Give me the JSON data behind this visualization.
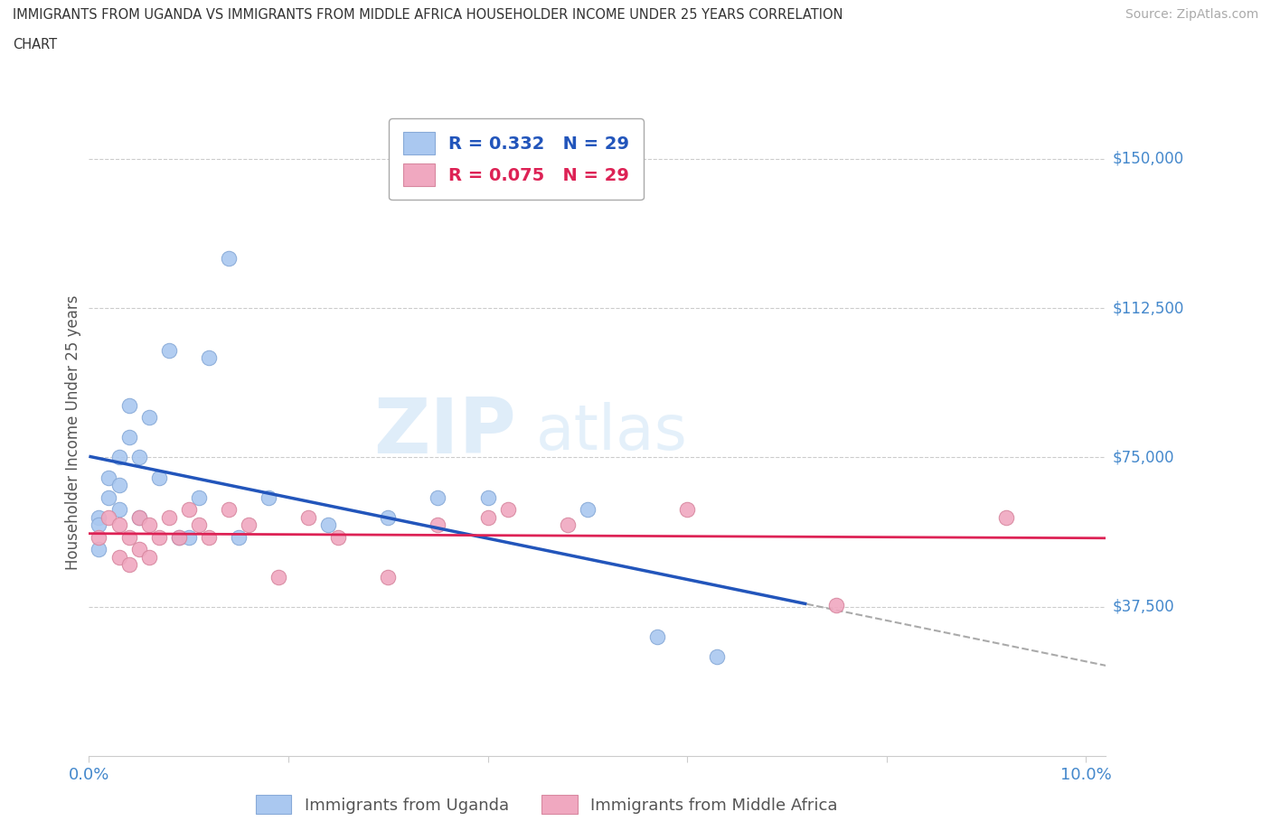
{
  "title_line1": "IMMIGRANTS FROM UGANDA VS IMMIGRANTS FROM MIDDLE AFRICA HOUSEHOLDER INCOME UNDER 25 YEARS CORRELATION",
  "title_line2": "CHART",
  "source": "Source: ZipAtlas.com",
  "ylabel": "Householder Income Under 25 years",
  "xlim": [
    0.0,
    0.102
  ],
  "ylim": [
    0,
    162500
  ],
  "xticks": [
    0.0,
    0.02,
    0.04,
    0.06,
    0.08,
    0.1
  ],
  "ytick_vals": [
    37500,
    75000,
    112500,
    150000
  ],
  "ytick_labels": [
    "$37,500",
    "$75,000",
    "$112,500",
    "$150,000"
  ],
  "uganda_color": "#aac8f0",
  "uganda_edge": "#88aad8",
  "midafrica_color": "#f0a8c0",
  "midafrica_edge": "#d888a0",
  "line_uganda_color": "#2255bb",
  "line_midafrica_color": "#dd2255",
  "R_uganda": 0.332,
  "R_midafrica": 0.075,
  "N_uganda": 29,
  "N_midafrica": 29,
  "background_color": "#ffffff",
  "uganda_x": [
    0.001,
    0.001,
    0.001,
    0.002,
    0.002,
    0.003,
    0.003,
    0.003,
    0.004,
    0.004,
    0.005,
    0.005,
    0.006,
    0.007,
    0.008,
    0.009,
    0.01,
    0.011,
    0.012,
    0.014,
    0.015,
    0.018,
    0.024,
    0.03,
    0.035,
    0.04,
    0.05,
    0.057,
    0.063
  ],
  "uganda_y": [
    60000,
    52000,
    58000,
    70000,
    65000,
    75000,
    62000,
    68000,
    88000,
    80000,
    60000,
    75000,
    85000,
    70000,
    102000,
    55000,
    55000,
    65000,
    100000,
    125000,
    55000,
    65000,
    58000,
    60000,
    65000,
    65000,
    62000,
    30000,
    25000
  ],
  "midafrica_x": [
    0.001,
    0.002,
    0.003,
    0.003,
    0.004,
    0.004,
    0.005,
    0.005,
    0.006,
    0.006,
    0.007,
    0.008,
    0.009,
    0.01,
    0.011,
    0.012,
    0.014,
    0.016,
    0.019,
    0.022,
    0.025,
    0.03,
    0.035,
    0.04,
    0.042,
    0.048,
    0.06,
    0.075,
    0.092
  ],
  "midafrica_y": [
    55000,
    60000,
    50000,
    58000,
    55000,
    48000,
    60000,
    52000,
    58000,
    50000,
    55000,
    60000,
    55000,
    62000,
    58000,
    55000,
    62000,
    58000,
    45000,
    60000,
    55000,
    45000,
    58000,
    60000,
    62000,
    58000,
    62000,
    38000,
    60000
  ]
}
